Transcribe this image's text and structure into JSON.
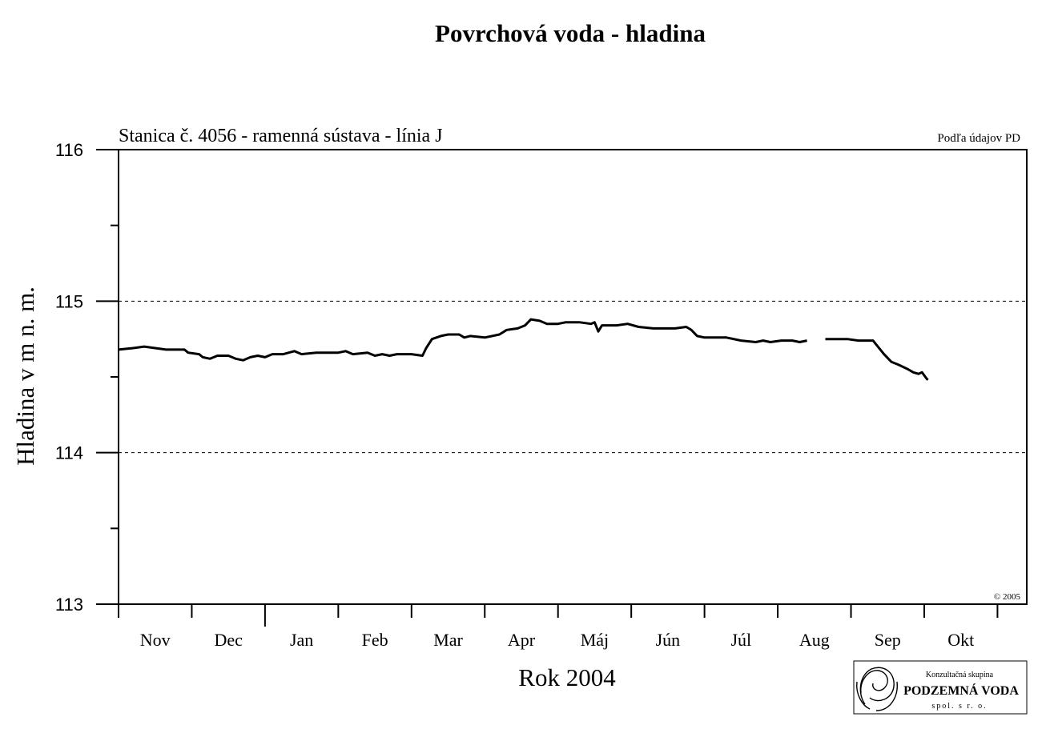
{
  "chart_data": {
    "type": "line",
    "title": "Povrchová voda - hladina",
    "subtitle": "Stanica č. 4056 - ramenná sústava - línia J",
    "source_note": "Podľa údajov PD",
    "copyright": "© 2005",
    "xlabel": "Rok 2004",
    "ylabel": "Hladina v m n. m.",
    "ylim": [
      113,
      116
    ],
    "yticks": [
      "113",
      "114",
      "115",
      "116"
    ],
    "gridlines": [
      114,
      115
    ],
    "x_unit": "months from start of Nov 2003",
    "xlim": [
      0,
      12.4
    ],
    "months": [
      "Nov",
      "Dec",
      "Jan",
      "Feb",
      "Mar",
      "Apr",
      "Máj",
      "Jún",
      "Júl",
      "Aug",
      "Sep",
      "Okt"
    ],
    "series": [
      {
        "segments": [
          [
            [
              0.0,
              114.68
            ],
            [
              0.2,
              114.69
            ],
            [
              0.35,
              114.7
            ],
            [
              0.5,
              114.69
            ],
            [
              0.65,
              114.68
            ],
            [
              0.9,
              114.68
            ],
            [
              0.95,
              114.66
            ],
            [
              1.1,
              114.65
            ],
            [
              1.15,
              114.63
            ],
            [
              1.25,
              114.62
            ],
            [
              1.35,
              114.64
            ],
            [
              1.5,
              114.64
            ],
            [
              1.6,
              114.62
            ],
            [
              1.7,
              114.61
            ],
            [
              1.8,
              114.63
            ],
            [
              1.9,
              114.64
            ],
            [
              2.0,
              114.63
            ],
            [
              2.1,
              114.65
            ],
            [
              2.25,
              114.65
            ],
            [
              2.4,
              114.67
            ],
            [
              2.5,
              114.65
            ],
            [
              2.7,
              114.66
            ],
            [
              3.0,
              114.66
            ],
            [
              3.1,
              114.67
            ],
            [
              3.2,
              114.65
            ],
            [
              3.4,
              114.66
            ],
            [
              3.5,
              114.64
            ],
            [
              3.6,
              114.65
            ],
            [
              3.7,
              114.64
            ],
            [
              3.8,
              114.65
            ],
            [
              4.0,
              114.65
            ],
            [
              4.15,
              114.64
            ],
            [
              4.2,
              114.69
            ],
            [
              4.28,
              114.75
            ],
            [
              4.4,
              114.77
            ],
            [
              4.5,
              114.78
            ],
            [
              4.65,
              114.78
            ],
            [
              4.72,
              114.76
            ],
            [
              4.8,
              114.77
            ],
            [
              5.0,
              114.76
            ],
            [
              5.2,
              114.78
            ],
            [
              5.3,
              114.81
            ],
            [
              5.45,
              114.82
            ],
            [
              5.55,
              114.84
            ],
            [
              5.63,
              114.88
            ],
            [
              5.75,
              114.87
            ],
            [
              5.85,
              114.85
            ],
            [
              6.0,
              114.85
            ],
            [
              6.1,
              114.86
            ],
            [
              6.3,
              114.86
            ],
            [
              6.45,
              114.85
            ],
            [
              6.5,
              114.86
            ],
            [
              6.55,
              114.8
            ],
            [
              6.6,
              114.84
            ],
            [
              6.8,
              114.84
            ],
            [
              6.95,
              114.85
            ],
            [
              7.1,
              114.83
            ],
            [
              7.3,
              114.82
            ],
            [
              7.6,
              114.82
            ],
            [
              7.75,
              114.83
            ],
            [
              7.82,
              114.81
            ],
            [
              7.9,
              114.77
            ],
            [
              8.0,
              114.76
            ],
            [
              8.3,
              114.76
            ],
            [
              8.5,
              114.74
            ],
            [
              8.7,
              114.73
            ],
            [
              8.8,
              114.74
            ],
            [
              8.9,
              114.73
            ],
            [
              9.05,
              114.74
            ],
            [
              9.2,
              114.74
            ],
            [
              9.3,
              114.73
            ],
            [
              9.4,
              114.74
            ]
          ],
          [
            [
              9.65,
              114.75
            ],
            [
              9.95,
              114.75
            ],
            [
              10.1,
              114.74
            ],
            [
              10.3,
              114.74
            ],
            [
              10.35,
              114.71
            ],
            [
              10.45,
              114.65
            ],
            [
              10.55,
              114.6
            ],
            [
              10.65,
              114.58
            ],
            [
              10.78,
              114.55
            ],
            [
              10.85,
              114.53
            ],
            [
              10.92,
              114.52
            ],
            [
              10.97,
              114.53
            ],
            [
              11.03,
              114.49
            ],
            [
              11.05,
              114.48
            ]
          ]
        ]
      }
    ]
  },
  "logo": {
    "line1": "Konzultačná skupina",
    "line2": "PODZEMNÁ VODA",
    "line3": "spol. s r. o."
  }
}
